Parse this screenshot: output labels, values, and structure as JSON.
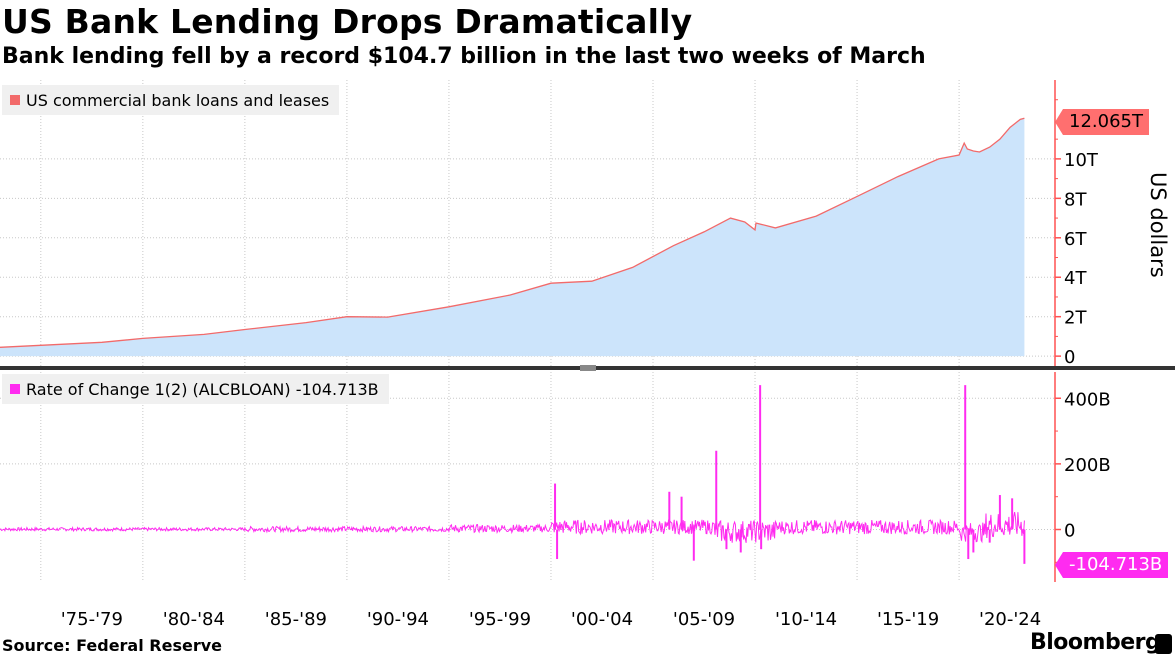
{
  "title": "US Bank Lending Drops Dramatically",
  "subtitle": "Bank lending fell by a record $104.7 billion in the last two weeks of March",
  "source": "Source:  Federal Reserve",
  "brand": "Bloomberg",
  "colors": {
    "area_fill": "#cce4fb",
    "top_line": "#f26a6a",
    "bottom_line": "#ff2bf0",
    "axis": "#ff5252",
    "grid": "#c8c8c8"
  },
  "chart_data": [
    {
      "type": "area",
      "legend": "US commercial bank loans and leases",
      "ylabel": "US dollars",
      "last_value_label": "12.065T",
      "ylim": [
        -0.5,
        14.0
      ],
      "yticks": [
        0,
        2,
        4,
        6,
        8,
        10
      ],
      "ytick_labels": [
        "0",
        "2T",
        "4T",
        "6T",
        "8T",
        "10T"
      ],
      "grid": true,
      "legend_position": "top-left",
      "x": [
        1973.0,
        1975,
        1978,
        1980,
        1983,
        1985,
        1988,
        1990,
        1992,
        1995,
        1998,
        2000,
        2002,
        2004,
        2006,
        2007.5,
        2008.8,
        2009.5,
        2010.0,
        2010.05,
        2011,
        2013,
        2015,
        2017,
        2019,
        2020.0,
        2020.25,
        2020.4,
        2020.7,
        2021.0,
        2021.5,
        2022.0,
        2022.5,
        2023.0,
        2023.2
      ],
      "values": [
        0.45,
        0.55,
        0.7,
        0.9,
        1.1,
        1.35,
        1.7,
        2.0,
        1.98,
        2.5,
        3.1,
        3.7,
        3.8,
        4.5,
        5.6,
        6.3,
        7.0,
        6.8,
        6.4,
        6.75,
        6.5,
        7.1,
        8.1,
        9.1,
        10.0,
        10.2,
        10.8,
        10.5,
        10.4,
        10.35,
        10.6,
        11.0,
        11.6,
        12.0,
        12.065
      ]
    },
    {
      "type": "line",
      "legend": "Rate of Change 1(2) (ALCBLOAN) -104.713B",
      "last_value_label": "-104.713B",
      "ylim": [
        -160,
        480
      ],
      "yticks": [
        0,
        200,
        400
      ],
      "ytick_labels": [
        "0",
        "200B",
        "400B"
      ],
      "grid": true,
      "legend_position": "top-left",
      "spikes": [
        {
          "x": 2000.2,
          "value": 140
        },
        {
          "x": 2000.3,
          "value": -90
        },
        {
          "x": 2005.8,
          "value": 115
        },
        {
          "x": 2006.4,
          "value": 100
        },
        {
          "x": 2007.0,
          "value": -95
        },
        {
          "x": 2008.1,
          "value": 240
        },
        {
          "x": 2008.6,
          "value": -60
        },
        {
          "x": 2009.3,
          "value": -70
        },
        {
          "x": 2010.25,
          "value": 440
        },
        {
          "x": 2010.3,
          "value": -60
        },
        {
          "x": 2020.3,
          "value": 440
        },
        {
          "x": 2020.45,
          "value": -90
        },
        {
          "x": 2020.7,
          "value": -70
        },
        {
          "x": 2021.5,
          "value": -40
        },
        {
          "x": 2022.0,
          "value": 105
        },
        {
          "x": 2022.6,
          "value": 95
        },
        {
          "x": 2023.2,
          "value": -104.713
        }
      ],
      "noise_bands": [
        {
          "from": 1973,
          "to": 1985,
          "amplitude": 5,
          "bias": 2
        },
        {
          "from": 1985,
          "to": 1995,
          "amplitude": 8,
          "bias": 3
        },
        {
          "from": 1995,
          "to": 2000,
          "amplitude": 12,
          "bias": 8
        },
        {
          "from": 2000,
          "to": 2008,
          "amplitude": 22,
          "bias": 20
        },
        {
          "from": 2008,
          "to": 2011,
          "amplitude": 35,
          "bias": -15
        },
        {
          "from": 2011,
          "to": 2020,
          "amplitude": 22,
          "bias": 18
        },
        {
          "from": 2020,
          "to": 2021.3,
          "amplitude": 30,
          "bias": -20
        },
        {
          "from": 2021.3,
          "to": 2023.2,
          "amplitude": 40,
          "bias": 35
        }
      ]
    }
  ],
  "x_axis": {
    "ticks": [
      1975,
      1980,
      1985,
      1990,
      1995,
      2000,
      2005,
      2010,
      2015,
      2020
    ],
    "labels": [
      "'75-'79",
      "'80-'84",
      "'85-'89",
      "'90-'94",
      "'95-'99",
      "'00-'04",
      "'05-'09",
      "'10-'14",
      "'15-'19",
      "'20-'24"
    ],
    "xlim": [
      1973.0,
      2024.7
    ]
  }
}
